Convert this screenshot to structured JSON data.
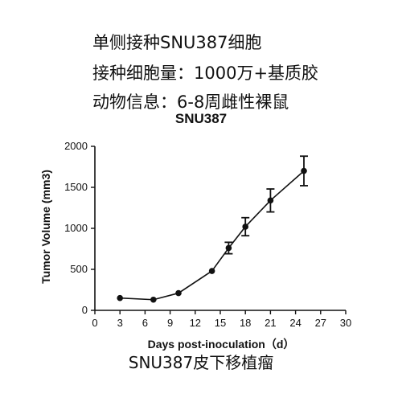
{
  "info": {
    "line1": "单侧接种SNU387细胞",
    "line2": "接种细胞量：1000万+基质胶",
    "line3": "动物信息：6-8周雌性裸鼠"
  },
  "caption": "SNU387皮下移植瘤",
  "chart_data": {
    "type": "line",
    "title": "SNU387",
    "xlabel": "Days post-inoculation（d）",
    "ylabel": "Tumor Volume (mm3)",
    "xlim": [
      0,
      30
    ],
    "ylim": [
      0,
      2000
    ],
    "xticks": [
      0,
      3,
      6,
      9,
      12,
      15,
      18,
      21,
      24,
      27,
      30
    ],
    "yticks": [
      0,
      500,
      1000,
      1500,
      2000
    ],
    "grid": false,
    "series": [
      {
        "x": [
          3,
          7,
          10,
          14,
          16,
          18,
          21,
          25
        ],
        "y": [
          150,
          130,
          210,
          480,
          760,
          1020,
          1340,
          1700
        ],
        "error": [
          0,
          0,
          0,
          0,
          70,
          110,
          140,
          180
        ]
      }
    ]
  }
}
